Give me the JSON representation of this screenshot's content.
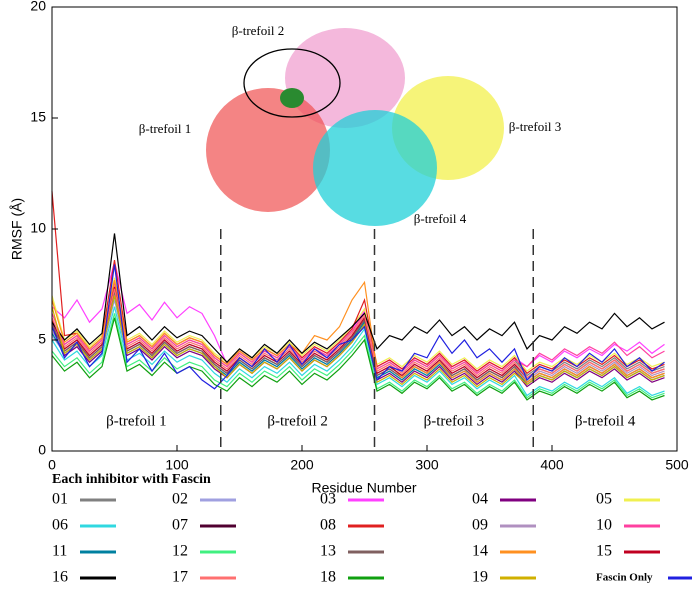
{
  "chart_data": {
    "type": "line",
    "xlabel": "Residue Number",
    "ylabel": "RMSF (Å)",
    "xlim": [
      0,
      500
    ],
    "ylim": [
      0,
      20
    ],
    "xticks": [
      0,
      100,
      200,
      300,
      400,
      500
    ],
    "yticks": [
      0,
      5,
      10,
      15,
      20
    ],
    "dividers": [
      135,
      258,
      385
    ],
    "region_labels": [
      "β-trefoil 1",
      "β-trefoil 2",
      "β-trefoil 3",
      "β-trefoil 4"
    ],
    "image_labels": [
      "β-trefoil 1",
      "β-trefoil 2",
      "β-trefoil 3",
      "β-trefoil 4"
    ],
    "legend_title": "Each inhibitor with Fascin",
    "x": [
      0,
      10,
      20,
      30,
      40,
      50,
      60,
      70,
      80,
      90,
      100,
      110,
      120,
      130,
      140,
      150,
      160,
      170,
      180,
      190,
      200,
      210,
      220,
      230,
      240,
      250,
      260,
      270,
      280,
      290,
      300,
      310,
      320,
      330,
      340,
      350,
      360,
      370,
      380,
      390,
      400,
      410,
      420,
      430,
      440,
      450,
      460,
      470,
      480,
      490
    ],
    "series": [
      {
        "name": "01",
        "color": "#808080",
        "values": [
          5.5,
          4.8,
          5.2,
          4.5,
          5.0,
          7.0,
          4.8,
          5.1,
          4.6,
          5.2,
          4.7,
          5.0,
          4.8,
          4.2,
          3.8,
          4.4,
          4.0,
          4.5,
          4.2,
          4.7,
          4.1,
          4.6,
          4.3,
          4.8,
          5.4,
          5.8,
          3.7,
          4.0,
          3.6,
          4.1,
          3.8,
          4.3,
          3.7,
          4.0,
          3.5,
          3.9,
          3.6,
          4.1,
          3.4,
          3.8,
          3.6,
          4.0,
          3.7,
          4.1,
          3.8,
          4.2,
          3.7,
          4.0,
          3.6,
          3.8
        ]
      },
      {
        "name": "02",
        "color": "#a0a0e0",
        "values": [
          5.2,
          4.4,
          4.7,
          4.0,
          4.5,
          6.8,
          4.3,
          4.6,
          4.1,
          4.7,
          4.2,
          4.5,
          4.3,
          3.8,
          3.4,
          4.0,
          3.6,
          4.1,
          3.8,
          4.3,
          3.7,
          4.2,
          3.9,
          4.4,
          5.0,
          5.6,
          3.3,
          3.6,
          3.2,
          3.7,
          3.4,
          3.9,
          3.3,
          3.6,
          3.1,
          3.5,
          3.2,
          3.7,
          3.0,
          3.4,
          3.2,
          3.6,
          3.3,
          3.7,
          3.4,
          3.8,
          3.3,
          3.6,
          3.2,
          3.4
        ]
      },
      {
        "name": "03",
        "color": "#ff40ff",
        "values": [
          6.5,
          6.0,
          6.8,
          5.8,
          6.4,
          8.5,
          6.2,
          6.6,
          5.9,
          6.7,
          6.0,
          6.5,
          6.2,
          5.2,
          3.9,
          4.5,
          4.1,
          4.6,
          4.3,
          4.8,
          4.2,
          4.7,
          4.4,
          4.9,
          5.5,
          6.3,
          3.8,
          4.1,
          3.7,
          4.2,
          3.9,
          4.4,
          3.8,
          4.1,
          3.6,
          4.0,
          3.7,
          4.2,
          3.8,
          4.3,
          4.0,
          4.5,
          4.2,
          4.6,
          4.3,
          4.8,
          4.5,
          4.9,
          4.4,
          4.8
        ]
      },
      {
        "name": "04",
        "color": "#800080",
        "values": [
          5.8,
          4.3,
          4.7,
          4.0,
          4.5,
          7.2,
          4.3,
          4.6,
          4.1,
          4.7,
          4.2,
          4.5,
          4.3,
          3.7,
          3.3,
          3.9,
          3.5,
          4.0,
          3.7,
          4.2,
          3.6,
          4.1,
          3.8,
          4.3,
          4.9,
          5.7,
          3.2,
          3.5,
          3.1,
          3.6,
          3.3,
          3.8,
          3.2,
          3.5,
          3.0,
          3.4,
          3.1,
          3.6,
          2.9,
          3.3,
          3.1,
          3.5,
          3.2,
          3.6,
          3.3,
          3.7,
          3.2,
          3.5,
          3.1,
          3.3
        ]
      },
      {
        "name": "05",
        "color": "#f0f050",
        "values": [
          7.0,
          5.0,
          5.4,
          4.7,
          5.2,
          7.8,
          5.0,
          5.3,
          4.8,
          5.4,
          4.9,
          5.2,
          5.0,
          4.4,
          4.0,
          4.6,
          4.2,
          4.7,
          4.4,
          4.9,
          4.3,
          4.8,
          4.5,
          5.0,
          5.6,
          6.4,
          3.9,
          4.2,
          3.8,
          4.3,
          4.0,
          4.5,
          3.9,
          4.2,
          3.7,
          4.1,
          3.8,
          4.3,
          3.6,
          4.0,
          3.8,
          4.2,
          3.9,
          4.3,
          4.0,
          4.4,
          3.9,
          4.2,
          3.8,
          4.0
        ]
      },
      {
        "name": "06",
        "color": "#30d8e0",
        "values": [
          5.0,
          4.1,
          4.5,
          3.8,
          4.3,
          6.5,
          4.1,
          4.4,
          3.9,
          4.5,
          4.0,
          4.3,
          4.1,
          3.5,
          3.1,
          3.7,
          3.3,
          3.8,
          3.5,
          4.0,
          3.4,
          3.9,
          3.6,
          4.1,
          4.7,
          5.5,
          3.0,
          3.3,
          2.9,
          3.4,
          3.1,
          3.6,
          3.0,
          3.3,
          2.8,
          3.2,
          2.9,
          3.4,
          2.5,
          2.9,
          2.7,
          3.1,
          2.8,
          3.2,
          2.9,
          3.3,
          2.6,
          2.9,
          2.5,
          2.7
        ]
      },
      {
        "name": "07",
        "color": "#500030",
        "values": [
          5.6,
          4.5,
          4.9,
          4.2,
          4.7,
          7.3,
          4.5,
          4.8,
          4.3,
          4.9,
          4.4,
          4.7,
          4.5,
          3.9,
          3.5,
          4.1,
          3.7,
          4.2,
          3.9,
          4.4,
          3.8,
          4.3,
          4.0,
          4.5,
          5.1,
          5.9,
          3.4,
          3.7,
          3.3,
          3.8,
          3.5,
          4.0,
          3.4,
          3.7,
          3.2,
          3.6,
          3.3,
          3.8,
          3.1,
          3.5,
          3.3,
          3.7,
          3.4,
          3.8,
          3.5,
          3.9,
          3.4,
          3.7,
          3.3,
          3.5
        ]
      },
      {
        "name": "08",
        "color": "#e02020",
        "values": [
          11.7,
          5.2,
          5.3,
          4.6,
          5.1,
          8.6,
          4.9,
          5.2,
          4.7,
          5.3,
          4.8,
          5.1,
          4.9,
          4.3,
          3.9,
          4.5,
          4.1,
          4.6,
          4.3,
          4.8,
          4.2,
          4.7,
          4.4,
          4.9,
          5.5,
          6.8,
          3.8,
          4.1,
          3.7,
          4.2,
          3.9,
          4.4,
          3.8,
          4.1,
          3.6,
          4.0,
          3.7,
          4.2,
          3.5,
          3.9,
          3.7,
          4.1,
          3.8,
          4.2,
          3.9,
          4.3,
          3.8,
          4.1,
          3.7,
          3.9
        ]
      },
      {
        "name": "09",
        "color": "#b090c0",
        "values": [
          5.4,
          4.6,
          5.0,
          4.3,
          4.8,
          7.1,
          4.6,
          4.9,
          4.4,
          5.0,
          4.5,
          4.8,
          4.6,
          4.0,
          3.6,
          4.2,
          3.8,
          4.3,
          4.0,
          4.5,
          3.9,
          4.4,
          4.1,
          4.6,
          5.2,
          6.0,
          3.5,
          3.8,
          3.4,
          3.9,
          3.6,
          4.1,
          3.5,
          3.8,
          3.3,
          3.7,
          3.4,
          3.9,
          3.2,
          3.6,
          3.4,
          3.8,
          3.5,
          3.9,
          3.6,
          4.0,
          3.5,
          3.8,
          3.4,
          3.6
        ]
      },
      {
        "name": "10",
        "color": "#ff40a0",
        "values": [
          6.2,
          4.8,
          5.2,
          4.5,
          5.0,
          7.6,
          4.8,
          5.1,
          4.6,
          5.2,
          4.7,
          5.0,
          4.8,
          4.2,
          3.8,
          4.4,
          4.0,
          4.5,
          4.2,
          4.7,
          4.1,
          4.6,
          4.3,
          4.8,
          5.4,
          6.2,
          3.7,
          4.0,
          3.6,
          4.1,
          3.8,
          4.3,
          3.7,
          4.0,
          3.5,
          3.9,
          3.6,
          4.1,
          3.8,
          4.4,
          4.1,
          4.6,
          4.3,
          4.7,
          4.4,
          4.9,
          4.3,
          4.7,
          4.2,
          4.5
        ]
      },
      {
        "name": "11",
        "color": "#0080a0",
        "values": [
          5.3,
          4.4,
          4.8,
          4.1,
          4.6,
          7.0,
          4.4,
          4.7,
          4.2,
          4.8,
          4.3,
          4.6,
          4.4,
          3.8,
          3.4,
          4.0,
          3.6,
          4.1,
          3.8,
          4.3,
          3.7,
          4.2,
          3.9,
          4.4,
          5.0,
          5.8,
          3.3,
          3.6,
          3.2,
          3.7,
          3.4,
          3.9,
          3.3,
          3.6,
          3.1,
          3.5,
          3.2,
          3.7,
          3.0,
          3.4,
          3.2,
          3.6,
          3.3,
          3.7,
          3.4,
          3.8,
          3.3,
          3.6,
          3.2,
          3.4
        ]
      },
      {
        "name": "12",
        "color": "#40f080",
        "values": [
          4.5,
          3.8,
          4.2,
          3.5,
          4.0,
          6.2,
          3.8,
          4.1,
          3.6,
          4.2,
          3.7,
          4.0,
          3.8,
          3.2,
          2.9,
          3.5,
          3.1,
          3.6,
          3.3,
          3.8,
          3.2,
          3.7,
          3.4,
          3.9,
          4.5,
          5.2,
          2.8,
          3.1,
          2.7,
          3.2,
          2.9,
          3.4,
          2.8,
          3.1,
          2.6,
          3.0,
          2.7,
          3.2,
          2.4,
          2.8,
          2.6,
          3.0,
          2.7,
          3.1,
          2.8,
          3.2,
          2.5,
          2.8,
          2.4,
          2.6
        ]
      },
      {
        "name": "13",
        "color": "#806060",
        "values": [
          5.7,
          4.5,
          4.9,
          4.2,
          4.7,
          7.2,
          4.5,
          4.8,
          4.3,
          4.9,
          4.4,
          4.7,
          4.5,
          3.9,
          3.5,
          4.1,
          3.7,
          4.2,
          3.9,
          4.4,
          3.8,
          4.3,
          4.0,
          4.5,
          5.1,
          5.9,
          3.4,
          3.7,
          3.3,
          3.8,
          3.5,
          4.0,
          3.4,
          3.7,
          3.2,
          3.6,
          3.3,
          3.8,
          3.1,
          3.5,
          3.3,
          3.7,
          3.4,
          3.8,
          3.5,
          3.9,
          3.4,
          3.7,
          3.3,
          3.5
        ]
      },
      {
        "name": "14",
        "color": "#ff9020",
        "values": [
          6.8,
          4.9,
          5.3,
          4.6,
          5.1,
          7.7,
          4.9,
          5.2,
          4.7,
          5.3,
          4.8,
          5.1,
          4.9,
          4.3,
          3.9,
          4.5,
          4.1,
          4.6,
          4.3,
          4.8,
          4.4,
          5.2,
          5.0,
          5.6,
          6.8,
          7.6,
          3.6,
          3.9,
          3.3,
          3.8,
          3.5,
          4.0,
          3.3,
          3.6,
          3.1,
          3.5,
          3.2,
          3.7,
          3.1,
          3.5,
          3.3,
          3.7,
          3.4,
          3.8,
          3.5,
          3.9,
          3.4,
          3.7,
          3.3,
          3.5
        ]
      },
      {
        "name": "15",
        "color": "#c00020",
        "values": [
          5.9,
          4.6,
          5.0,
          4.3,
          4.8,
          7.4,
          4.6,
          4.9,
          4.4,
          5.0,
          4.5,
          4.8,
          4.6,
          4.0,
          3.6,
          4.2,
          3.8,
          4.3,
          4.0,
          4.5,
          3.9,
          4.4,
          4.1,
          4.6,
          5.2,
          6.0,
          3.5,
          3.8,
          3.4,
          3.9,
          3.6,
          4.1,
          3.5,
          3.8,
          3.3,
          3.7,
          3.4,
          3.9,
          3.3,
          3.7,
          3.5,
          3.9,
          3.6,
          4.0,
          3.7,
          4.1,
          3.6,
          3.9,
          3.5,
          3.7
        ]
      },
      {
        "name": "16",
        "color": "#000000",
        "values": [
          5.8,
          5.0,
          5.5,
          4.8,
          5.3,
          9.8,
          5.2,
          5.6,
          5.0,
          5.6,
          5.1,
          5.4,
          5.2,
          4.6,
          4.0,
          4.6,
          4.2,
          4.8,
          4.4,
          5.0,
          4.4,
          4.9,
          4.6,
          5.1,
          5.6,
          6.2,
          4.6,
          5.2,
          5.0,
          5.6,
          5.3,
          5.9,
          5.2,
          5.6,
          5.0,
          5.5,
          5.2,
          5.8,
          4.6,
          5.2,
          5.0,
          5.6,
          5.3,
          5.8,
          5.5,
          6.2,
          5.6,
          6.0,
          5.5,
          5.8
        ]
      },
      {
        "name": "17",
        "color": "#ff7070",
        "values": [
          6.0,
          4.7,
          5.1,
          4.4,
          4.9,
          7.3,
          4.7,
          5.0,
          4.5,
          5.1,
          4.6,
          4.9,
          4.7,
          4.1,
          3.7,
          4.3,
          3.9,
          4.4,
          4.1,
          4.6,
          4.0,
          4.5,
          4.2,
          4.7,
          5.3,
          6.1,
          3.6,
          3.9,
          3.5,
          4.0,
          3.7,
          4.2,
          3.6,
          3.9,
          3.4,
          3.8,
          3.5,
          4.0,
          3.3,
          3.7,
          3.5,
          3.9,
          3.6,
          4.0,
          3.7,
          4.1,
          3.6,
          3.9,
          3.5,
          3.7
        ]
      },
      {
        "name": "18",
        "color": "#10a010",
        "values": [
          4.3,
          3.6,
          4.0,
          3.3,
          3.8,
          6.0,
          3.6,
          3.9,
          3.4,
          4.0,
          3.5,
          3.8,
          3.6,
          3.0,
          2.7,
          3.3,
          2.9,
          3.4,
          3.1,
          3.6,
          3.0,
          3.5,
          3.2,
          3.7,
          4.3,
          5.0,
          2.7,
          3.0,
          2.6,
          3.1,
          2.8,
          3.3,
          2.7,
          3.0,
          2.5,
          2.9,
          2.6,
          3.1,
          2.3,
          2.7,
          2.5,
          2.9,
          2.6,
          3.0,
          2.7,
          3.1,
          2.4,
          2.7,
          2.3,
          2.5
        ]
      },
      {
        "name": "19",
        "color": "#d0b000",
        "values": [
          6.5,
          4.4,
          4.8,
          4.1,
          4.6,
          7.0,
          4.4,
          4.7,
          4.2,
          4.8,
          4.3,
          4.6,
          4.4,
          3.8,
          3.3,
          3.9,
          3.5,
          4.0,
          3.7,
          4.2,
          3.6,
          4.1,
          3.8,
          4.3,
          4.9,
          5.7,
          3.1,
          3.4,
          3.0,
          3.5,
          3.2,
          3.7,
          3.1,
          3.4,
          2.9,
          3.3,
          3.0,
          3.5,
          3.0,
          3.4,
          3.2,
          3.6,
          3.3,
          3.7,
          3.4,
          3.8,
          3.3,
          3.6,
          3.2,
          3.4
        ]
      },
      {
        "name": "Fascin Only",
        "color": "#2020e0",
        "values": [
          5.6,
          4.2,
          4.9,
          3.8,
          4.4,
          8.4,
          4.0,
          4.6,
          3.6,
          4.4,
          3.5,
          3.8,
          3.2,
          2.8,
          3.4,
          4.2,
          3.8,
          4.6,
          4.0,
          4.8,
          3.9,
          4.6,
          4.2,
          4.8,
          5.0,
          5.6,
          3.2,
          3.8,
          3.6,
          4.4,
          4.2,
          5.2,
          4.4,
          5.0,
          4.2,
          4.6,
          4.0,
          4.6,
          3.2,
          3.8,
          3.6,
          4.2,
          3.8,
          4.4,
          4.0,
          4.6,
          3.8,
          4.2,
          3.6,
          4.0
        ]
      }
    ]
  }
}
